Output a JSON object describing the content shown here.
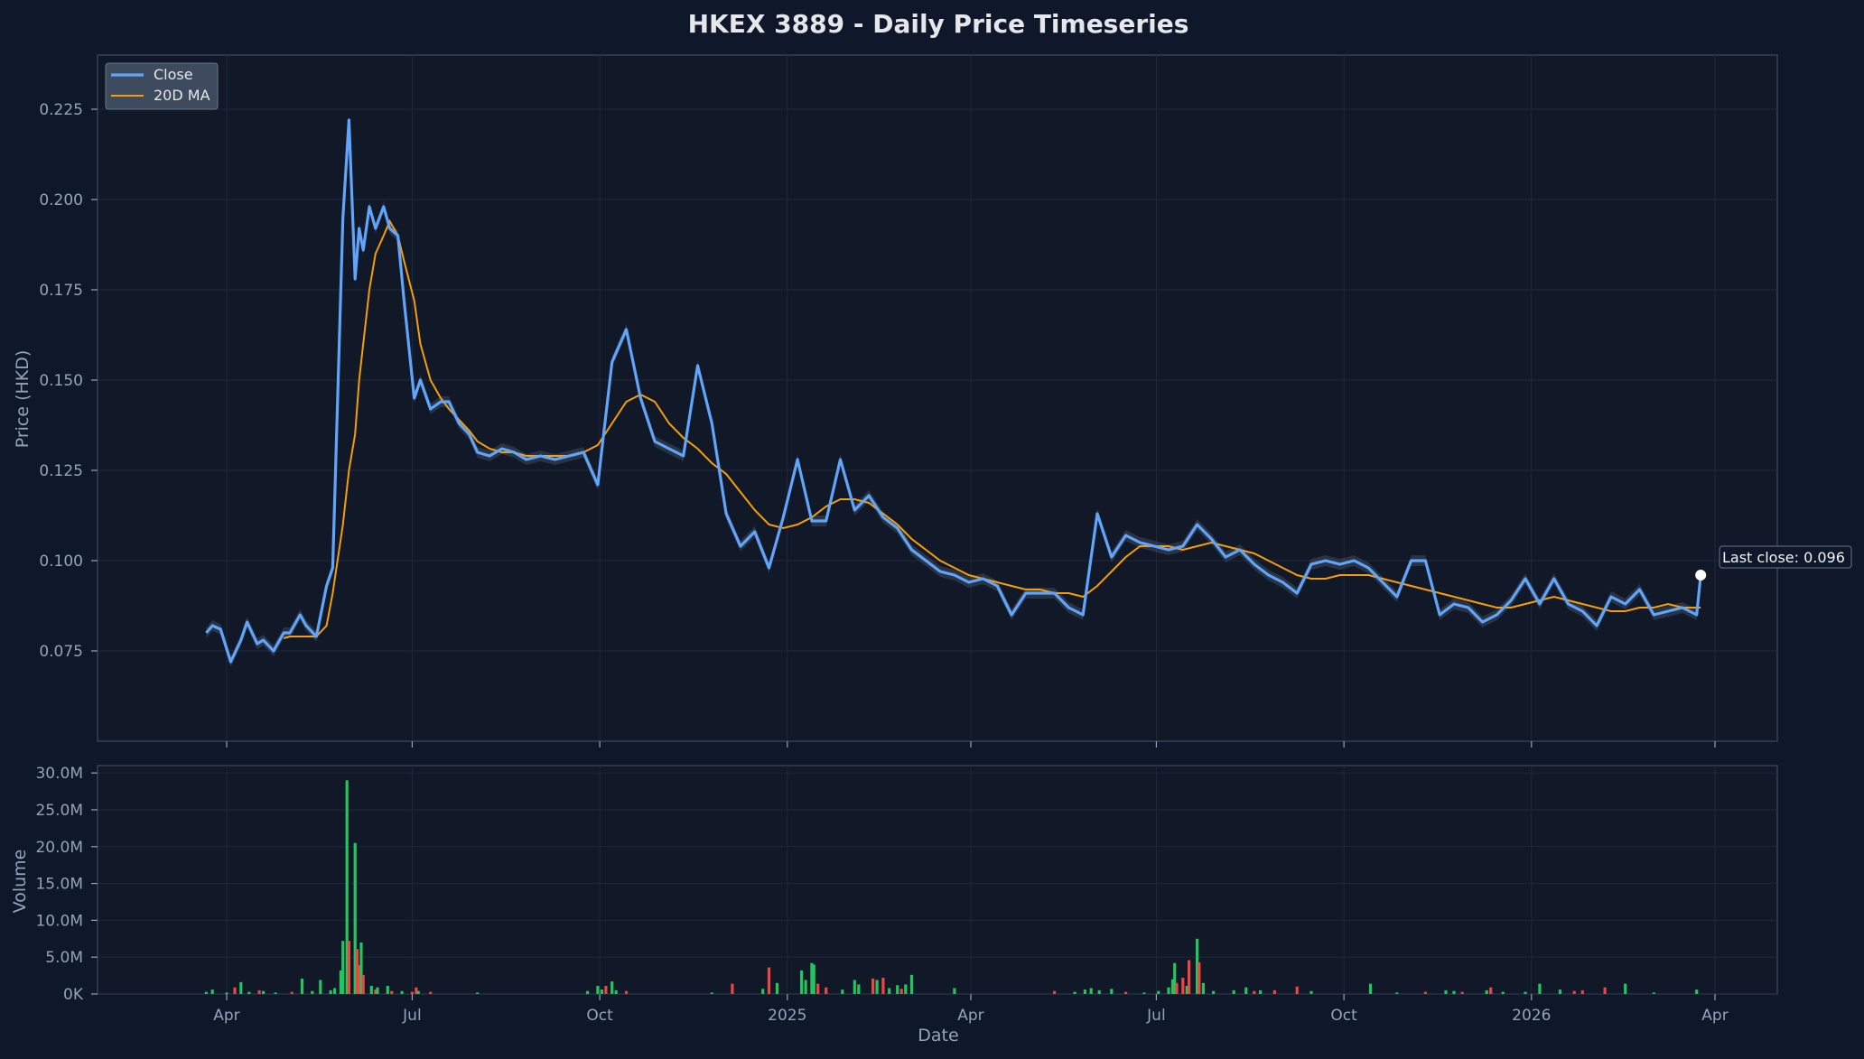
{
  "chart_data": [
    {
      "type": "line",
      "title": "HKEX 3889 - Daily Price Timeseries",
      "ylabel": "Price (HKD)",
      "ylim": [
        0.05,
        0.24
      ],
      "yticks": [
        "0.075",
        "0.100",
        "0.125",
        "0.150",
        "0.175",
        "0.200",
        "0.225"
      ],
      "xticks": [
        "Apr",
        "Jul",
        "Oct",
        "2025",
        "Apr",
        "Jul",
        "Oct",
        "2026",
        "Apr"
      ],
      "grid": true,
      "legend": {
        "placement": "top-left",
        "entries": [
          "Close",
          "20D MA"
        ]
      },
      "annotation": "Last close: 0.096",
      "colors": {
        "close": "#60a5fa",
        "ma": "#f59e0b",
        "band": "#475569",
        "background": "#111827"
      },
      "x": [
        "2024-03-22",
        "2024-03-25",
        "2024-03-29",
        "2024-04-03",
        "2024-04-08",
        "2024-04-11",
        "2024-04-16",
        "2024-04-19",
        "2024-04-24",
        "2024-04-29",
        "2024-05-02",
        "2024-05-07",
        "2024-05-10",
        "2024-05-15",
        "2024-05-20",
        "2024-05-23",
        "2024-05-28",
        "2024-05-31",
        "2024-06-03",
        "2024-06-05",
        "2024-06-07",
        "2024-06-10",
        "2024-06-13",
        "2024-06-17",
        "2024-06-20",
        "2024-06-24",
        "2024-06-27",
        "2024-07-02",
        "2024-07-05",
        "2024-07-10",
        "2024-07-15",
        "2024-07-19",
        "2024-07-24",
        "2024-07-29",
        "2024-08-02",
        "2024-08-08",
        "2024-08-14",
        "2024-08-20",
        "2024-08-26",
        "2024-09-02",
        "2024-09-09",
        "2024-09-16",
        "2024-09-23",
        "2024-09-30",
        "2024-10-07",
        "2024-10-14",
        "2024-10-21",
        "2024-10-28",
        "2024-11-04",
        "2024-11-11",
        "2024-11-18",
        "2024-11-25",
        "2024-12-02",
        "2024-12-09",
        "2024-12-16",
        "2024-12-23",
        "2024-12-30",
        "2025-01-06",
        "2025-01-13",
        "2025-01-20",
        "2025-01-27",
        "2025-02-03",
        "2025-02-10",
        "2025-02-17",
        "2025-02-24",
        "2025-03-03",
        "2025-03-10",
        "2025-03-17",
        "2025-03-24",
        "2025-03-31",
        "2025-04-07",
        "2025-04-14",
        "2025-04-21",
        "2025-04-28",
        "2025-05-05",
        "2025-05-12",
        "2025-05-19",
        "2025-05-26",
        "2025-06-02",
        "2025-06-09",
        "2025-06-16",
        "2025-06-23",
        "2025-06-30",
        "2025-07-07",
        "2025-07-14",
        "2025-07-21",
        "2025-07-28",
        "2025-08-04",
        "2025-08-11",
        "2025-08-18",
        "2025-08-25",
        "2025-09-01",
        "2025-09-08",
        "2025-09-15",
        "2025-09-22",
        "2025-09-29",
        "2025-10-06",
        "2025-10-13",
        "2025-10-20",
        "2025-10-27",
        "2025-11-03",
        "2025-11-10",
        "2025-11-17",
        "2025-11-24",
        "2025-12-01",
        "2025-12-08",
        "2025-12-15",
        "2025-12-22",
        "2025-12-29",
        "2026-01-05",
        "2026-01-12",
        "2026-01-19",
        "2026-01-26",
        "2026-02-02",
        "2026-02-09",
        "2026-02-16",
        "2026-02-23",
        "2026-03-02",
        "2026-03-09",
        "2026-03-16",
        "2026-03-23",
        "2026-03-25"
      ],
      "close": [
        0.08,
        0.082,
        0.081,
        0.072,
        0.078,
        0.083,
        0.077,
        0.078,
        0.075,
        0.08,
        0.08,
        0.085,
        0.082,
        0.079,
        0.093,
        0.098,
        0.195,
        0.222,
        0.178,
        0.192,
        0.186,
        0.198,
        0.192,
        0.198,
        0.192,
        0.19,
        0.172,
        0.145,
        0.15,
        0.142,
        0.144,
        0.144,
        0.138,
        0.135,
        0.13,
        0.129,
        0.131,
        0.13,
        0.128,
        0.129,
        0.128,
        0.129,
        0.13,
        0.121,
        0.155,
        0.164,
        0.145,
        0.133,
        0.131,
        0.129,
        0.154,
        0.138,
        0.113,
        0.104,
        0.108,
        0.098,
        0.112,
        0.128,
        0.111,
        0.111,
        0.128,
        0.114,
        0.118,
        0.112,
        0.109,
        0.103,
        0.1,
        0.097,
        0.096,
        0.094,
        0.095,
        0.093,
        0.085,
        0.091,
        0.091,
        0.091,
        0.087,
        0.085,
        0.113,
        0.101,
        0.107,
        0.105,
        0.104,
        0.103,
        0.104,
        0.11,
        0.106,
        0.101,
        0.103,
        0.099,
        0.096,
        0.094,
        0.091,
        0.099,
        0.1,
        0.099,
        0.1,
        0.098,
        0.094,
        0.09,
        0.1,
        0.1,
        0.085,
        0.088,
        0.087,
        0.083,
        0.085,
        0.089,
        0.095,
        0.088,
        0.095,
        0.088,
        0.086,
        0.082,
        0.09,
        0.088,
        0.092,
        0.085,
        0.086,
        0.087,
        0.085,
        0.096
      ],
      "ma20": [
        null,
        null,
        null,
        null,
        null,
        null,
        null,
        null,
        null,
        0.0785,
        0.079,
        0.079,
        0.079,
        0.079,
        0.082,
        0.091,
        0.11,
        0.125,
        0.135,
        0.15,
        0.16,
        0.175,
        0.185,
        0.19,
        0.194,
        0.19,
        0.183,
        0.172,
        0.16,
        0.15,
        0.145,
        0.142,
        0.139,
        0.136,
        0.133,
        0.131,
        0.13,
        0.13,
        0.129,
        0.129,
        0.129,
        0.129,
        0.13,
        0.132,
        0.138,
        0.144,
        0.146,
        0.144,
        0.138,
        0.134,
        0.131,
        0.127,
        0.124,
        0.119,
        0.114,
        0.11,
        0.109,
        0.11,
        0.112,
        0.115,
        0.117,
        0.117,
        0.116,
        0.113,
        0.11,
        0.106,
        0.103,
        0.1,
        0.098,
        0.096,
        0.095,
        0.094,
        0.093,
        0.092,
        0.092,
        0.091,
        0.091,
        0.09,
        0.093,
        0.097,
        0.101,
        0.104,
        0.104,
        0.104,
        0.103,
        0.104,
        0.105,
        0.104,
        0.103,
        0.102,
        0.1,
        0.098,
        0.096,
        0.095,
        0.095,
        0.096,
        0.096,
        0.096,
        0.095,
        0.094,
        0.093,
        0.092,
        0.091,
        0.09,
        0.089,
        0.088,
        0.087,
        0.087,
        0.088,
        0.089,
        0.09,
        0.089,
        0.088,
        0.087,
        0.086,
        0.086,
        0.087,
        0.087,
        0.088,
        0.087,
        0.087,
        0.087
      ]
    },
    {
      "type": "bar",
      "ylabel": "Volume",
      "xlabel": "Date",
      "ylim": [
        0,
        31000000
      ],
      "yticks": [
        "0K",
        "5.0M",
        "10.0M",
        "15.0M",
        "20.0M",
        "25.0M",
        "30.0M"
      ],
      "colors": {
        "up": "#22c55e",
        "down": "#ef4444"
      },
      "bars": [
        {
          "x": "2024-03-22",
          "v": 300000,
          "up": true
        },
        {
          "x": "2024-03-25",
          "v": 600000,
          "up": true
        },
        {
          "x": "2024-04-01",
          "v": 200000,
          "up": true
        },
        {
          "x": "2024-04-05",
          "v": 900000,
          "up": false
        },
        {
          "x": "2024-04-08",
          "v": 1600000,
          "up": true
        },
        {
          "x": "2024-04-12",
          "v": 300000,
          "up": true
        },
        {
          "x": "2024-04-17",
          "v": 500000,
          "up": false
        },
        {
          "x": "2024-04-19",
          "v": 400000,
          "up": true
        },
        {
          "x": "2024-04-25",
          "v": 200000,
          "up": true
        },
        {
          "x": "2024-05-03",
          "v": 300000,
          "up": false
        },
        {
          "x": "2024-05-08",
          "v": 2100000,
          "up": true
        },
        {
          "x": "2024-05-13",
          "v": 400000,
          "up": true
        },
        {
          "x": "2024-05-17",
          "v": 1900000,
          "up": true
        },
        {
          "x": "2024-05-22",
          "v": 500000,
          "up": true
        },
        {
          "x": "2024-05-24",
          "v": 800000,
          "up": true
        },
        {
          "x": "2024-05-27",
          "v": 3200000,
          "up": true
        },
        {
          "x": "2024-05-28",
          "v": 7200000,
          "up": true
        },
        {
          "x": "2024-05-30",
          "v": 29000000,
          "up": true
        },
        {
          "x": "2024-05-31",
          "v": 7200000,
          "up": false
        },
        {
          "x": "2024-06-03",
          "v": 20500000,
          "up": true
        },
        {
          "x": "2024-06-04",
          "v": 6100000,
          "up": false
        },
        {
          "x": "2024-06-05",
          "v": 3900000,
          "up": false
        },
        {
          "x": "2024-06-06",
          "v": 7000000,
          "up": true
        },
        {
          "x": "2024-06-07",
          "v": 2600000,
          "up": false
        },
        {
          "x": "2024-06-11",
          "v": 1100000,
          "up": true
        },
        {
          "x": "2024-06-13",
          "v": 600000,
          "up": false
        },
        {
          "x": "2024-06-14",
          "v": 900000,
          "up": true
        },
        {
          "x": "2024-06-19",
          "v": 1100000,
          "up": true
        },
        {
          "x": "2024-06-21",
          "v": 400000,
          "up": false
        },
        {
          "x": "2024-06-26",
          "v": 400000,
          "up": true
        },
        {
          "x": "2024-07-01",
          "v": 300000,
          "up": false
        },
        {
          "x": "2024-07-03",
          "v": 900000,
          "up": false
        },
        {
          "x": "2024-07-04",
          "v": 400000,
          "up": true
        },
        {
          "x": "2024-07-10",
          "v": 300000,
          "up": false
        },
        {
          "x": "2024-08-02",
          "v": 200000,
          "up": true
        },
        {
          "x": "2024-09-25",
          "v": 400000,
          "up": true
        },
        {
          "x": "2024-09-30",
          "v": 1100000,
          "up": true
        },
        {
          "x": "2024-10-02",
          "v": 600000,
          "up": true
        },
        {
          "x": "2024-10-04",
          "v": 1100000,
          "up": false
        },
        {
          "x": "2024-10-07",
          "v": 1700000,
          "up": true
        },
        {
          "x": "2024-10-09",
          "v": 500000,
          "up": true
        },
        {
          "x": "2024-10-14",
          "v": 400000,
          "up": false
        },
        {
          "x": "2024-11-25",
          "v": 200000,
          "up": true
        },
        {
          "x": "2024-12-05",
          "v": 1400000,
          "up": false
        },
        {
          "x": "2024-12-20",
          "v": 700000,
          "up": true
        },
        {
          "x": "2024-12-23",
          "v": 3600000,
          "up": false
        },
        {
          "x": "2024-12-27",
          "v": 1500000,
          "up": true
        },
        {
          "x": "2025-01-08",
          "v": 3200000,
          "up": true
        },
        {
          "x": "2025-01-10",
          "v": 1900000,
          "up": true
        },
        {
          "x": "2025-01-13",
          "v": 4200000,
          "up": true
        },
        {
          "x": "2025-01-14",
          "v": 4000000,
          "up": true
        },
        {
          "x": "2025-01-16",
          "v": 1400000,
          "up": false
        },
        {
          "x": "2025-01-20",
          "v": 900000,
          "up": false
        },
        {
          "x": "2025-01-28",
          "v": 600000,
          "up": true
        },
        {
          "x": "2025-02-03",
          "v": 1900000,
          "up": true
        },
        {
          "x": "2025-02-05",
          "v": 1300000,
          "up": true
        },
        {
          "x": "2025-02-12",
          "v": 2100000,
          "up": false
        },
        {
          "x": "2025-02-14",
          "v": 1900000,
          "up": true
        },
        {
          "x": "2025-02-17",
          "v": 2200000,
          "up": false
        },
        {
          "x": "2025-02-20",
          "v": 800000,
          "up": true
        },
        {
          "x": "2025-02-24",
          "v": 1200000,
          "up": true
        },
        {
          "x": "2025-02-26",
          "v": 700000,
          "up": false
        },
        {
          "x": "2025-02-28",
          "v": 1300000,
          "up": true
        },
        {
          "x": "2025-03-03",
          "v": 2600000,
          "up": true
        },
        {
          "x": "2025-03-24",
          "v": 800000,
          "up": true
        },
        {
          "x": "2025-05-12",
          "v": 400000,
          "up": false
        },
        {
          "x": "2025-05-22",
          "v": 300000,
          "up": true
        },
        {
          "x": "2025-05-27",
          "v": 600000,
          "up": true
        },
        {
          "x": "2025-05-30",
          "v": 800000,
          "up": true
        },
        {
          "x": "2025-06-03",
          "v": 500000,
          "up": true
        },
        {
          "x": "2025-06-09",
          "v": 700000,
          "up": true
        },
        {
          "x": "2025-06-16",
          "v": 300000,
          "up": false
        },
        {
          "x": "2025-06-25",
          "v": 200000,
          "up": true
        },
        {
          "x": "2025-07-02",
          "v": 400000,
          "up": true
        },
        {
          "x": "2025-07-07",
          "v": 900000,
          "up": true
        },
        {
          "x": "2025-07-09",
          "v": 2000000,
          "up": true
        },
        {
          "x": "2025-07-10",
          "v": 4200000,
          "up": true
        },
        {
          "x": "2025-07-11",
          "v": 1500000,
          "up": false
        },
        {
          "x": "2025-07-14",
          "v": 2200000,
          "up": false
        },
        {
          "x": "2025-07-16",
          "v": 1100000,
          "up": true
        },
        {
          "x": "2025-07-17",
          "v": 4600000,
          "up": false
        },
        {
          "x": "2025-07-21",
          "v": 7500000,
          "up": true
        },
        {
          "x": "2025-07-22",
          "v": 4300000,
          "up": false
        },
        {
          "x": "2025-07-24",
          "v": 1500000,
          "up": true
        },
        {
          "x": "2025-07-29",
          "v": 400000,
          "up": true
        },
        {
          "x": "2025-08-08",
          "v": 500000,
          "up": true
        },
        {
          "x": "2025-08-14",
          "v": 900000,
          "up": true
        },
        {
          "x": "2025-08-18",
          "v": 400000,
          "up": false
        },
        {
          "x": "2025-08-21",
          "v": 500000,
          "up": true
        },
        {
          "x": "2025-08-28",
          "v": 500000,
          "up": false
        },
        {
          "x": "2025-09-08",
          "v": 1000000,
          "up": false
        },
        {
          "x": "2025-09-15",
          "v": 400000,
          "up": true
        },
        {
          "x": "2025-10-14",
          "v": 1400000,
          "up": true
        },
        {
          "x": "2025-10-27",
          "v": 200000,
          "up": true
        },
        {
          "x": "2025-11-10",
          "v": 300000,
          "up": false
        },
        {
          "x": "2025-11-20",
          "v": 500000,
          "up": true
        },
        {
          "x": "2025-11-24",
          "v": 400000,
          "up": true
        },
        {
          "x": "2025-11-28",
          "v": 300000,
          "up": false
        },
        {
          "x": "2025-12-10",
          "v": 500000,
          "up": true
        },
        {
          "x": "2025-12-12",
          "v": 900000,
          "up": false
        },
        {
          "x": "2025-12-18",
          "v": 300000,
          "up": true
        },
        {
          "x": "2025-12-29",
          "v": 300000,
          "up": true
        },
        {
          "x": "2026-01-05",
          "v": 1400000,
          "up": true
        },
        {
          "x": "2026-01-15",
          "v": 600000,
          "up": true
        },
        {
          "x": "2026-01-22",
          "v": 400000,
          "up": false
        },
        {
          "x": "2026-01-26",
          "v": 500000,
          "up": false
        },
        {
          "x": "2026-02-06",
          "v": 900000,
          "up": false
        },
        {
          "x": "2026-02-16",
          "v": 1400000,
          "up": true
        },
        {
          "x": "2026-03-02",
          "v": 200000,
          "up": true
        },
        {
          "x": "2026-03-23",
          "v": 600000,
          "up": true
        }
      ]
    }
  ]
}
